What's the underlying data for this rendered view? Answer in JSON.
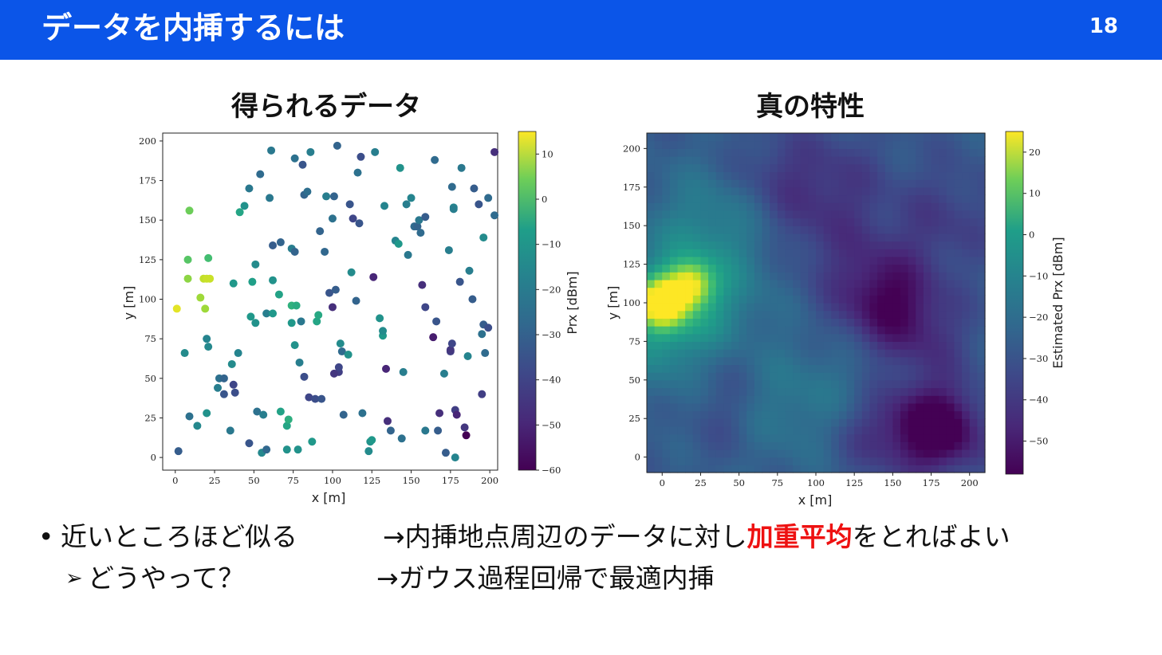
{
  "slide": {
    "title": "データを内挿するには",
    "page_number": "18"
  },
  "left_plot": {
    "title": "得られるデータ",
    "xlabel": "x [m]",
    "ylabel": "y [m]",
    "cbar_label": "Prx [dBm]",
    "xticks": [
      "0",
      "25",
      "50",
      "75",
      "100",
      "125",
      "150",
      "175",
      "200"
    ],
    "yticks": [
      "0",
      "25",
      "50",
      "75",
      "100",
      "125",
      "150",
      "175",
      "200"
    ],
    "cbar_ticks": [
      "10",
      "0",
      "−10",
      "−20",
      "−30",
      "−40",
      "−50",
      "−60"
    ]
  },
  "right_plot": {
    "title": "真の特性",
    "xlabel": "x [m]",
    "ylabel": "y [m]",
    "cbar_label": "Estimated Prx [dBm]",
    "xticks": [
      "0",
      "25",
      "50",
      "75",
      "100",
      "125",
      "150",
      "175",
      "200"
    ],
    "yticks": [
      "0",
      "25",
      "50",
      "75",
      "100",
      "125",
      "150",
      "175",
      "200"
    ],
    "cbar_ticks": [
      "20",
      "10",
      "0",
      "−10",
      "−20",
      "−30",
      "−40",
      "−50"
    ]
  },
  "bullets": {
    "marker1": "•",
    "line1_left": "近いところほど似る",
    "line1_right_pre": "→内挿地点周辺のデータに対し",
    "line1_right_highlight": "加重平均",
    "line1_right_post": "をとればよい",
    "marker2": "➢",
    "line2_left": "どうやって？",
    "line2_right": "→ガウス過程回帰で最適内挿"
  },
  "chart_data": [
    {
      "type": "scatter",
      "title": "得られるデータ",
      "xlabel": "x [m]",
      "ylabel": "y [m]",
      "xlim": [
        -8,
        205
      ],
      "ylim": [
        -8,
        205
      ],
      "colorbar": {
        "label": "Prx [dBm]",
        "range": [
          -60,
          15
        ],
        "colormap": "viridis"
      },
      "points": [
        [
          1,
          94,
          12
        ],
        [
          19,
          94,
          4
        ],
        [
          8,
          113,
          2
        ],
        [
          18,
          113,
          8
        ],
        [
          20,
          113,
          9
        ],
        [
          22,
          113,
          9
        ],
        [
          16,
          101,
          4
        ],
        [
          8,
          125,
          -5
        ],
        [
          21,
          126,
          -8
        ],
        [
          9,
          156,
          -2
        ],
        [
          2,
          4,
          -38
        ],
        [
          6,
          66,
          -24
        ],
        [
          9,
          26,
          -32
        ],
        [
          14,
          20,
          -25
        ],
        [
          20,
          28,
          -22
        ],
        [
          20,
          75,
          -26
        ],
        [
          21,
          70,
          -25
        ],
        [
          27,
          44,
          -28
        ],
        [
          28,
          50,
          -32
        ],
        [
          31,
          50,
          -36
        ],
        [
          31,
          40,
          -40
        ],
        [
          35,
          17,
          -30
        ],
        [
          36,
          59,
          -24
        ],
        [
          37,
          46,
          -44
        ],
        [
          38,
          41,
          -42
        ],
        [
          37,
          110,
          -20
        ],
        [
          40,
          66,
          -26
        ],
        [
          41,
          155,
          -16
        ],
        [
          44,
          159,
          -22
        ],
        [
          47,
          9,
          -40
        ],
        [
          47,
          170,
          -30
        ],
        [
          48,
          89,
          -20
        ],
        [
          49,
          111,
          -18
        ],
        [
          51,
          85,
          -22
        ],
        [
          51,
          122,
          -24
        ],
        [
          52,
          29,
          -32
        ],
        [
          54,
          179,
          -34
        ],
        [
          55,
          3,
          -25
        ],
        [
          56,
          27,
          -28
        ],
        [
          58,
          5,
          -35
        ],
        [
          58,
          91,
          -28
        ],
        [
          61,
          194,
          -30
        ],
        [
          62,
          134,
          -38
        ],
        [
          62,
          112,
          -22
        ],
        [
          62,
          91,
          -20
        ],
        [
          66,
          103,
          -17
        ],
        [
          67,
          29,
          -17
        ],
        [
          67,
          136,
          -36
        ],
        [
          71,
          20,
          -16
        ],
        [
          72,
          24,
          -13
        ],
        [
          71,
          5,
          -22
        ],
        [
          74,
          85,
          -20
        ],
        [
          74,
          96,
          -12
        ],
        [
          76,
          189,
          -32
        ],
        [
          74,
          132,
          -28
        ],
        [
          76,
          71,
          -22
        ],
        [
          76,
          130,
          -36
        ],
        [
          77,
          96,
          -14
        ],
        [
          78,
          5,
          -22
        ],
        [
          79,
          60,
          -28
        ],
        [
          80,
          86,
          -30
        ],
        [
          81,
          185,
          -40
        ],
        [
          82,
          166,
          -36
        ],
        [
          82,
          51,
          -42
        ],
        [
          85,
          38,
          -44
        ],
        [
          84,
          168,
          -33
        ],
        [
          86,
          193,
          -28
        ],
        [
          87,
          10,
          -20
        ],
        [
          89,
          37,
          -42
        ],
        [
          90,
          86,
          -16
        ],
        [
          91,
          90,
          -15
        ],
        [
          92,
          143,
          -36
        ],
        [
          93,
          37,
          -40
        ],
        [
          95,
          130,
          -35
        ],
        [
          96,
          165,
          -28
        ],
        [
          98,
          104,
          -40
        ],
        [
          100,
          95,
          -50
        ],
        [
          100,
          151,
          -32
        ],
        [
          101,
          165,
          -36
        ],
        [
          102,
          106,
          -38
        ],
        [
          103,
          197,
          -36
        ],
        [
          104,
          54,
          -46
        ],
        [
          104,
          57,
          -44
        ],
        [
          105,
          72,
          -24
        ],
        [
          106,
          67,
          -34
        ],
        [
          107,
          27,
          -36
        ],
        [
          110,
          65,
          -22
        ],
        [
          111,
          160,
          -40
        ],
        [
          112,
          117,
          -24
        ],
        [
          113,
          151,
          -44
        ],
        [
          115,
          99,
          -36
        ],
        [
          116,
          180,
          -32
        ],
        [
          118,
          190,
          -42
        ],
        [
          117,
          148,
          -40
        ],
        [
          119,
          28,
          -32
        ],
        [
          123,
          4,
          -24
        ],
        [
          124,
          10,
          -22
        ],
        [
          125,
          11,
          -20
        ],
        [
          126,
          114,
          -52
        ],
        [
          127,
          193,
          -28
        ],
        [
          130,
          88,
          -22
        ],
        [
          132,
          77,
          -20
        ],
        [
          132,
          80,
          -24
        ],
        [
          133,
          159,
          -26
        ],
        [
          134,
          56,
          -52
        ],
        [
          135,
          23,
          -50
        ],
        [
          137,
          17,
          -36
        ],
        [
          140,
          137,
          -26
        ],
        [
          142,
          135,
          -20
        ],
        [
          143,
          183,
          -22
        ],
        [
          144,
          12,
          -32
        ],
        [
          145,
          54,
          -28
        ],
        [
          147,
          160,
          -28
        ],
        [
          148,
          128,
          -30
        ],
        [
          150,
          164,
          -26
        ],
        [
          152,
          146,
          -34
        ],
        [
          154,
          146,
          -36
        ],
        [
          155,
          150,
          -30
        ],
        [
          156,
          142,
          -34
        ],
        [
          157,
          109,
          -50
        ],
        [
          159,
          95,
          -44
        ],
        [
          159,
          17,
          -30
        ],
        [
          159,
          152,
          -38
        ],
        [
          165,
          188,
          -34
        ],
        [
          166,
          86,
          -40
        ],
        [
          167,
          17,
          -38
        ],
        [
          168,
          28,
          -50
        ],
        [
          171,
          53,
          -28
        ],
        [
          172,
          3,
          -38
        ],
        [
          174,
          131,
          -28
        ],
        [
          175,
          67,
          -46
        ],
        [
          175,
          68,
          -48
        ],
        [
          176,
          72,
          -44
        ],
        [
          176,
          171,
          -34
        ],
        [
          177,
          158,
          -26
        ],
        [
          177,
          157,
          -28
        ],
        [
          178,
          0,
          -26
        ],
        [
          178,
          30,
          -46
        ],
        [
          179,
          27,
          -52
        ],
        [
          181,
          111,
          -40
        ],
        [
          182,
          183,
          -30
        ],
        [
          184,
          19,
          -48
        ],
        [
          185,
          14,
          -60
        ],
        [
          186,
          64,
          -26
        ],
        [
          187,
          118,
          -28
        ],
        [
          189,
          100,
          -38
        ],
        [
          190,
          170,
          -38
        ],
        [
          193,
          160,
          -40
        ],
        [
          196,
          139,
          -24
        ],
        [
          195,
          78,
          -32
        ],
        [
          197,
          66,
          -34
        ],
        [
          195,
          40,
          -46
        ],
        [
          196,
          84,
          -38
        ],
        [
          199,
          82,
          -42
        ],
        [
          199,
          164,
          -34
        ],
        [
          203,
          153,
          -34
        ],
        [
          203,
          193,
          -50
        ],
        [
          164,
          76,
          -54
        ],
        [
          101,
          53,
          -48
        ],
        [
          60,
          164,
          -30
        ]
      ]
    },
    {
      "type": "heatmap",
      "title": "真の特性",
      "xlabel": "x [m]",
      "ylabel": "y [m]",
      "xlim": [
        -10,
        210
      ],
      "ylim": [
        -10,
        210
      ],
      "colorbar": {
        "label": "Estimated Prx [dBm]",
        "range": [
          -58,
          25
        ],
        "colormap": "viridis"
      },
      "base_level": -34,
      "features": [
        [
          0,
          100,
          10,
          58
        ],
        [
          18,
          112,
          10,
          40
        ],
        [
          5,
          95,
          30,
          22
        ],
        [
          30,
          155,
          25,
          10
        ],
        [
          20,
          75,
          25,
          6
        ],
        [
          110,
          45,
          30,
          6
        ],
        [
          70,
          30,
          25,
          7
        ],
        [
          50,
          120,
          25,
          5
        ],
        [
          140,
          110,
          25,
          -14
        ],
        [
          150,
          95,
          20,
          -12
        ],
        [
          183,
          18,
          18,
          -22
        ],
        [
          165,
          20,
          22,
          -14
        ],
        [
          185,
          155,
          25,
          -8
        ],
        [
          100,
          150,
          25,
          -6
        ],
        [
          35,
          60,
          20,
          -8
        ],
        [
          110,
          180,
          25,
          -8
        ],
        [
          175,
          75,
          20,
          -8
        ],
        [
          45,
          25,
          18,
          -6
        ],
        [
          135,
          15,
          18,
          -8
        ],
        [
          70,
          185,
          20,
          -6
        ]
      ]
    }
  ]
}
